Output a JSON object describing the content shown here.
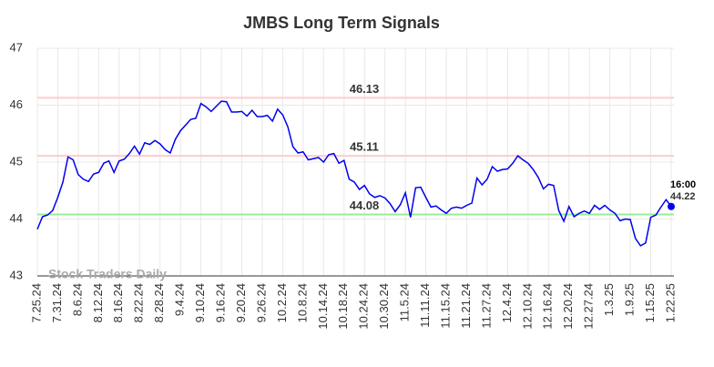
{
  "chart_data": {
    "type": "line",
    "title": "JMBS Long Term Signals",
    "categories": [
      "7.25.24",
      null,
      null,
      null,
      "7.31.24",
      null,
      null,
      null,
      "8.6.24",
      null,
      null,
      null,
      "8.12.24",
      null,
      null,
      null,
      "8.16.24",
      null,
      null,
      null,
      "8.22.24",
      null,
      null,
      null,
      "8.28.24",
      null,
      null,
      null,
      "9.4.24",
      null,
      null,
      null,
      "9.10.24",
      null,
      null,
      null,
      "9.16.24",
      null,
      null,
      null,
      "9.20.24",
      null,
      null,
      null,
      "9.26.24",
      null,
      null,
      null,
      "10.2.24",
      null,
      null,
      null,
      "10.8.24",
      null,
      null,
      null,
      "10.14.24",
      null,
      null,
      null,
      "10.18.24",
      null,
      null,
      null,
      "10.24.24",
      null,
      null,
      null,
      "10.30.24",
      null,
      null,
      null,
      "11.5.24",
      null,
      null,
      null,
      "11.11.24",
      null,
      null,
      null,
      "11.15.24",
      null,
      null,
      null,
      "11.21.24",
      null,
      null,
      null,
      "11.27.24",
      null,
      null,
      null,
      "12.4.24",
      null,
      null,
      null,
      "12.10.24",
      null,
      null,
      null,
      "12.16.24",
      null,
      null,
      null,
      "12.20.24",
      null,
      null,
      null,
      "12.27.24",
      null,
      null,
      null,
      "1.3.25",
      null,
      null,
      null,
      "1.9.25",
      null,
      null,
      null,
      "1.15.25",
      null,
      null,
      null,
      "1.22.25"
    ],
    "values": [
      43.82,
      44.04,
      44.07,
      44.15,
      44.38,
      44.65,
      45.09,
      45.04,
      44.78,
      44.7,
      44.66,
      44.79,
      44.82,
      44.98,
      45.02,
      44.82,
      45.02,
      45.05,
      45.15,
      45.28,
      45.14,
      45.34,
      45.31,
      45.38,
      45.32,
      45.22,
      45.16,
      45.4,
      45.55,
      45.65,
      45.75,
      45.77,
      46.03,
      45.97,
      45.89,
      45.98,
      46.07,
      46.06,
      45.88,
      45.88,
      45.89,
      45.81,
      45.91,
      45.8,
      45.8,
      45.82,
      45.72,
      45.93,
      45.83,
      45.62,
      45.27,
      45.16,
      45.18,
      45.04,
      45.06,
      45.08,
      45.0,
      45.13,
      45.15,
      44.98,
      45.03,
      44.7,
      44.65,
      44.52,
      44.59,
      44.44,
      44.38,
      44.41,
      44.37,
      44.27,
      44.13,
      44.25,
      44.46,
      44.03,
      44.55,
      44.56,
      44.38,
      44.21,
      44.23,
      44.16,
      44.1,
      44.19,
      44.21,
      44.19,
      44.24,
      44.28,
      44.72,
      44.6,
      44.7,
      44.92,
      44.84,
      44.87,
      44.88,
      44.98,
      45.11,
      45.04,
      44.98,
      44.87,
      44.73,
      44.53,
      44.61,
      44.59,
      44.15,
      43.96,
      44.22,
      44.04,
      44.1,
      44.14,
      44.1,
      44.24,
      44.17,
      44.24,
      44.16,
      44.1,
      43.97,
      44.0,
      43.99,
      43.66,
      43.53,
      43.58,
      44.03,
      44.07,
      44.21,
      44.34,
      44.22
    ],
    "color": "#0000ee",
    "ylim": [
      43,
      47
    ],
    "yticks": [
      43,
      44,
      45,
      46,
      47
    ],
    "grid": true,
    "hlines": [
      {
        "value": 46.13,
        "color": "#ffcccc",
        "label_color": "#8b0000"
      },
      {
        "value": 45.11,
        "color": "#ffcccc",
        "label_color": "#8b0000"
      },
      {
        "value": 44.08,
        "color": "#99ee99",
        "label_color": "#006400"
      }
    ],
    "last_time": "16:00",
    "watermark": "Stock Traders Daily"
  }
}
